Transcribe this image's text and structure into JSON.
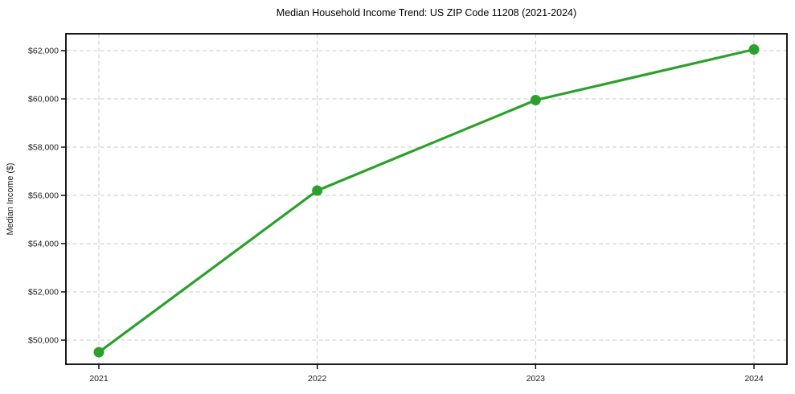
{
  "chart_data": {
    "type": "line",
    "title": "Median Household Income Trend: US ZIP Code 11208 (2021-2024)",
    "xlabel": "",
    "ylabel": "Median Income ($)",
    "categories": [
      "2021",
      "2022",
      "2023",
      "2024"
    ],
    "series": [
      {
        "name": "Median Income",
        "values": [
          49500,
          56200,
          59950,
          62050
        ],
        "color": "#2ca02c"
      }
    ],
    "ylim": [
      49000,
      62700
    ],
    "yticks": [
      50000,
      52000,
      54000,
      56000,
      58000,
      60000,
      62000
    ],
    "ytick_labels": [
      "$50,000",
      "$52,000",
      "$54,000",
      "$56,000",
      "$58,000",
      "$60,000",
      "$62,000"
    ],
    "grid": true,
    "grid_style": "dashed",
    "legend": "none",
    "marker": "circle",
    "marker_radius": 6.5,
    "line_width": 3.2,
    "x_margin_frac": 0.0457,
    "colors": {
      "line": "#2ca02c",
      "grid": "#c8c8c8",
      "spine": "#000000",
      "tick": "#000000",
      "tick_text": "#1a1a1a",
      "title_text": "#000000",
      "background": "#ffffff"
    }
  }
}
